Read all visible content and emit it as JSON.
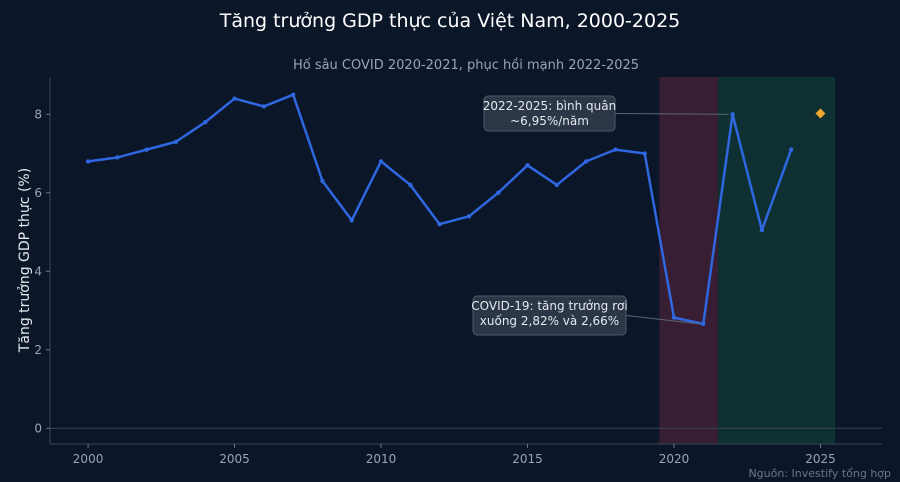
{
  "chart_data": {
    "type": "line",
    "title": "Tăng trưởng GDP thực của Việt Nam, 2000-2025",
    "subtitle": "Hố sâu COVID 2020-2021, phục hồi mạnh 2022-2025",
    "xlabel": "",
    "ylabel": "Tăng trưởng GDP thực (%)",
    "source": "Nguồn: Investify tổng hợp",
    "xlim": [
      1998.7,
      2027.1
    ],
    "ylim": [
      -0.4,
      8.95
    ],
    "xticks": [
      2000,
      2005,
      2010,
      2015,
      2020,
      2025
    ],
    "yticks": [
      0,
      2,
      4,
      6,
      8
    ],
    "grid": false,
    "series": [
      {
        "x": [
          2000,
          2001,
          2002,
          2003,
          2004,
          2005,
          2006,
          2007,
          2008,
          2009,
          2010,
          2011,
          2012,
          2013,
          2014,
          2015,
          2016,
          2017,
          2018,
          2019,
          2020,
          2021,
          2022,
          2023,
          2024
        ],
        "values": [
          6.8,
          6.9,
          7.1,
          7.3,
          7.8,
          8.4,
          8.2,
          8.5,
          6.3,
          5.3,
          6.8,
          6.2,
          5.2,
          5.4,
          6.0,
          6.7,
          6.2,
          6.8,
          7.1,
          7.0,
          2.82,
          2.66,
          8.0,
          5.05,
          7.1
        ]
      }
    ],
    "highlight_point": {
      "x": 2025,
      "value": 8.02
    },
    "shaded_regions": [
      {
        "x_start": 2019.5,
        "x_end": 2021.5,
        "color": "#3a1f33"
      },
      {
        "x_start": 2021.5,
        "x_end": 2025.5,
        "color": "#0f3134"
      }
    ],
    "annotations": [
      {
        "lines": [
          "2022-2025: bình quân",
          "~6,95%/năm"
        ],
        "target_x": 2022,
        "target_value": 8.0
      },
      {
        "lines": [
          "COVID-19: tăng trưởng rơi",
          "xuống 2,82% và 2,66%"
        ],
        "target_x": 2021,
        "target_value": 2.66
      }
    ],
    "colors": {
      "line": "#2f67e0",
      "highlight": "#f0a830",
      "background": "#0b1628"
    }
  }
}
